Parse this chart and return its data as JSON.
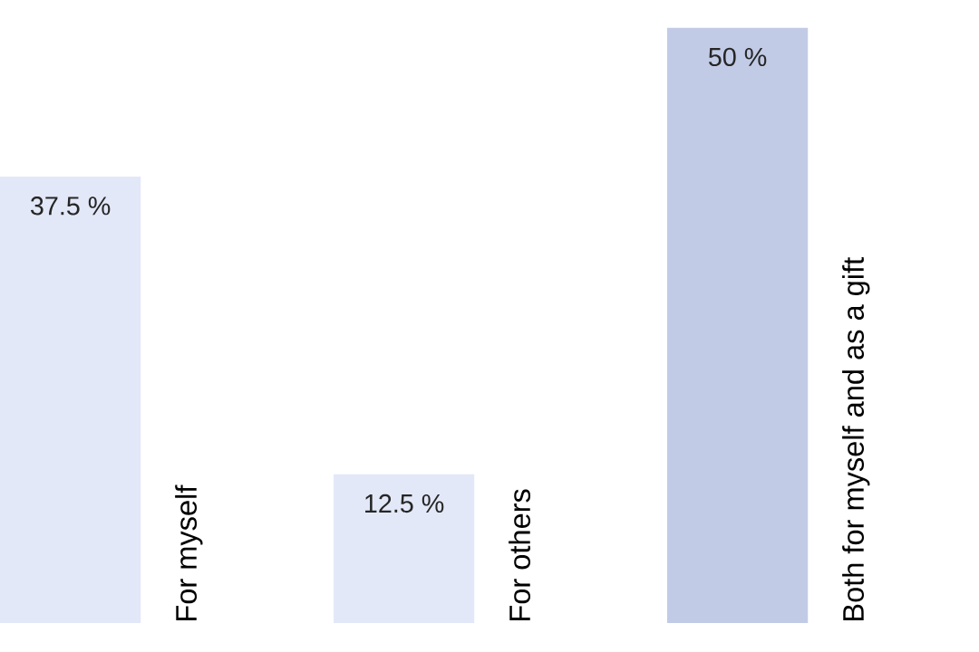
{
  "chart_data": {
    "type": "bar",
    "categories": [
      "For myself",
      "For others",
      "Both for myself and as a gift"
    ],
    "values": [
      37.5,
      12.5,
      50
    ],
    "colors": [
      "#e3e8f8",
      "#e3e8f8",
      "#c2cbe6"
    ],
    "value_labels": [
      "37.5 %",
      "12.5 %",
      "50 %"
    ]
  }
}
